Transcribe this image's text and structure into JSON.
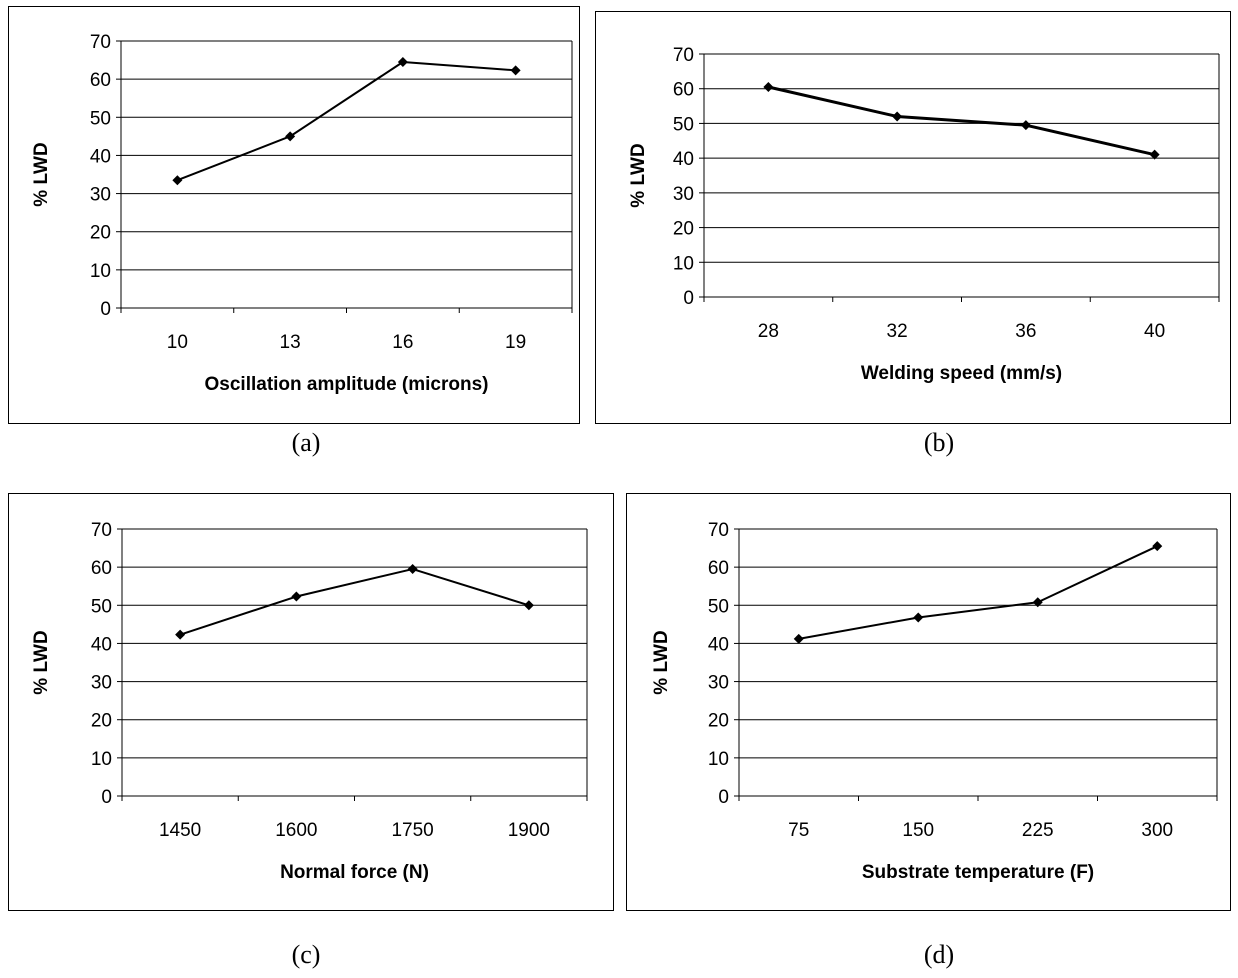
{
  "chart_data": [
    {
      "id": "a",
      "type": "line",
      "caption": "(a)",
      "xlabel": "Oscillation amplitude (microns)",
      "ylabel": "% LWD",
      "categories": [
        "10",
        "13",
        "16",
        "19"
      ],
      "values": [
        33.5,
        45,
        64.5,
        62.3
      ],
      "ylim": [
        0,
        70
      ],
      "yticks": [
        0,
        10,
        20,
        30,
        40,
        50,
        60,
        70
      ],
      "grid": true,
      "legend": "none"
    },
    {
      "id": "b",
      "type": "line",
      "caption": "(b)",
      "xlabel": "Welding speed (mm/s)",
      "ylabel": "% LWD",
      "categories": [
        "28",
        "32",
        "36",
        "40"
      ],
      "values": [
        60.5,
        52,
        49.5,
        41
      ],
      "ylim": [
        0,
        70
      ],
      "yticks": [
        0,
        10,
        20,
        30,
        40,
        50,
        60,
        70
      ],
      "grid": true,
      "legend": "none"
    },
    {
      "id": "c",
      "type": "line",
      "caption": "(c)",
      "xlabel": "Normal force (N)",
      "ylabel": "% LWD",
      "categories": [
        "1450",
        "1600",
        "1750",
        "1900"
      ],
      "values": [
        42.3,
        52.3,
        59.5,
        50
      ],
      "ylim": [
        0,
        70
      ],
      "yticks": [
        0,
        10,
        20,
        30,
        40,
        50,
        60,
        70
      ],
      "grid": true,
      "legend": "none"
    },
    {
      "id": "d",
      "type": "line",
      "caption": "(d)",
      "xlabel": "Substrate temperature (F)",
      "ylabel": "% LWD",
      "categories": [
        "75",
        "150",
        "225",
        "300"
      ],
      "values": [
        41.2,
        46.8,
        50.8,
        65.5
      ],
      "ylim": [
        0,
        70
      ],
      "yticks": [
        0,
        10,
        20,
        30,
        40,
        50,
        60,
        70
      ],
      "grid": true,
      "legend": "none"
    }
  ]
}
